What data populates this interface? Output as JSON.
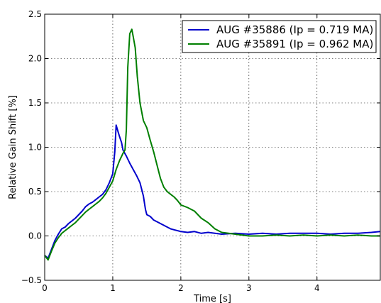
{
  "chart_data": {
    "type": "line",
    "title": "",
    "xlabel": "Time [s]",
    "ylabel": "Relative Gain Shift [%]",
    "xlim": [
      0,
      4.93
    ],
    "ylim": [
      -0.5,
      2.5
    ],
    "xticks": [
      0,
      1,
      2,
      3,
      4
    ],
    "xtick_labels": [
      "0",
      "1",
      "2",
      "3",
      "4"
    ],
    "yticks": [
      -0.5,
      0.0,
      0.5,
      1.0,
      1.5,
      2.0,
      2.5
    ],
    "ytick_labels": [
      "−0.5",
      "0.0",
      "0.5",
      "1.0",
      "1.5",
      "2.0",
      "2.5"
    ],
    "grid": true,
    "legend_position": "top-right",
    "series": [
      {
        "name": "AUG #35886 (Ip = 0.719 MA)",
        "color": "#0000cc",
        "points": [
          [
            0.0,
            -0.22
          ],
          [
            0.05,
            -0.25
          ],
          [
            0.1,
            -0.15
          ],
          [
            0.15,
            -0.05
          ],
          [
            0.2,
            0.02
          ],
          [
            0.25,
            0.08
          ],
          [
            0.3,
            0.1
          ],
          [
            0.35,
            0.14
          ],
          [
            0.4,
            0.17
          ],
          [
            0.45,
            0.2
          ],
          [
            0.5,
            0.24
          ],
          [
            0.55,
            0.28
          ],
          [
            0.6,
            0.33
          ],
          [
            0.65,
            0.36
          ],
          [
            0.7,
            0.38
          ],
          [
            0.75,
            0.41
          ],
          [
            0.8,
            0.44
          ],
          [
            0.85,
            0.47
          ],
          [
            0.9,
            0.52
          ],
          [
            0.95,
            0.6
          ],
          [
            1.0,
            0.7
          ],
          [
            1.03,
            0.95
          ],
          [
            1.05,
            1.25
          ],
          [
            1.08,
            1.17
          ],
          [
            1.1,
            1.12
          ],
          [
            1.13,
            1.05
          ],
          [
            1.15,
            0.97
          ],
          [
            1.2,
            0.9
          ],
          [
            1.25,
            0.82
          ],
          [
            1.3,
            0.75
          ],
          [
            1.35,
            0.68
          ],
          [
            1.4,
            0.6
          ],
          [
            1.45,
            0.45
          ],
          [
            1.48,
            0.3
          ],
          [
            1.5,
            0.24
          ],
          [
            1.55,
            0.22
          ],
          [
            1.6,
            0.18
          ],
          [
            1.65,
            0.16
          ],
          [
            1.7,
            0.14
          ],
          [
            1.75,
            0.12
          ],
          [
            1.8,
            0.1
          ],
          [
            1.85,
            0.08
          ],
          [
            1.9,
            0.07
          ],
          [
            2.0,
            0.05
          ],
          [
            2.1,
            0.04
          ],
          [
            2.2,
            0.05
          ],
          [
            2.3,
            0.03
          ],
          [
            2.4,
            0.04
          ],
          [
            2.5,
            0.03
          ],
          [
            2.6,
            0.02
          ],
          [
            2.8,
            0.03
          ],
          [
            3.0,
            0.02
          ],
          [
            3.2,
            0.03
          ],
          [
            3.4,
            0.02
          ],
          [
            3.6,
            0.03
          ],
          [
            3.8,
            0.03
          ],
          [
            4.0,
            0.03
          ],
          [
            4.2,
            0.02
          ],
          [
            4.4,
            0.03
          ],
          [
            4.6,
            0.03
          ],
          [
            4.8,
            0.04
          ],
          [
            4.93,
            0.05
          ]
        ]
      },
      {
        "name": "AUG #35891 (Ip = 0.962 MA)",
        "color": "#007f00",
        "points": [
          [
            0.0,
            -0.22
          ],
          [
            0.05,
            -0.27
          ],
          [
            0.1,
            -0.17
          ],
          [
            0.15,
            -0.08
          ],
          [
            0.2,
            -0.02
          ],
          [
            0.25,
            0.03
          ],
          [
            0.3,
            0.06
          ],
          [
            0.35,
            0.09
          ],
          [
            0.4,
            0.12
          ],
          [
            0.45,
            0.15
          ],
          [
            0.5,
            0.19
          ],
          [
            0.55,
            0.23
          ],
          [
            0.6,
            0.27
          ],
          [
            0.65,
            0.3
          ],
          [
            0.7,
            0.33
          ],
          [
            0.75,
            0.36
          ],
          [
            0.8,
            0.39
          ],
          [
            0.85,
            0.43
          ],
          [
            0.9,
            0.48
          ],
          [
            0.95,
            0.55
          ],
          [
            1.0,
            0.62
          ],
          [
            1.05,
            0.75
          ],
          [
            1.1,
            0.85
          ],
          [
            1.15,
            0.93
          ],
          [
            1.18,
            0.97
          ],
          [
            1.2,
            1.2
          ],
          [
            1.22,
            1.9
          ],
          [
            1.25,
            2.28
          ],
          [
            1.28,
            2.33
          ],
          [
            1.3,
            2.25
          ],
          [
            1.33,
            2.12
          ],
          [
            1.36,
            1.8
          ],
          [
            1.4,
            1.5
          ],
          [
            1.45,
            1.3
          ],
          [
            1.5,
            1.22
          ],
          [
            1.55,
            1.08
          ],
          [
            1.6,
            0.95
          ],
          [
            1.65,
            0.8
          ],
          [
            1.7,
            0.65
          ],
          [
            1.75,
            0.55
          ],
          [
            1.8,
            0.5
          ],
          [
            1.85,
            0.47
          ],
          [
            1.9,
            0.44
          ],
          [
            1.95,
            0.4
          ],
          [
            2.0,
            0.35
          ],
          [
            2.1,
            0.32
          ],
          [
            2.2,
            0.28
          ],
          [
            2.3,
            0.2
          ],
          [
            2.4,
            0.15
          ],
          [
            2.5,
            0.08
          ],
          [
            2.6,
            0.04
          ],
          [
            2.8,
            0.02
          ],
          [
            3.0,
            0.0
          ],
          [
            3.2,
            0.0
          ],
          [
            3.4,
            0.01
          ],
          [
            3.6,
            0.0
          ],
          [
            3.8,
            0.01
          ],
          [
            4.0,
            0.0
          ],
          [
            4.2,
            0.01
          ],
          [
            4.4,
            0.0
          ],
          [
            4.6,
            0.01
          ],
          [
            4.8,
            0.0
          ],
          [
            4.93,
            0.0
          ]
        ]
      }
    ]
  }
}
